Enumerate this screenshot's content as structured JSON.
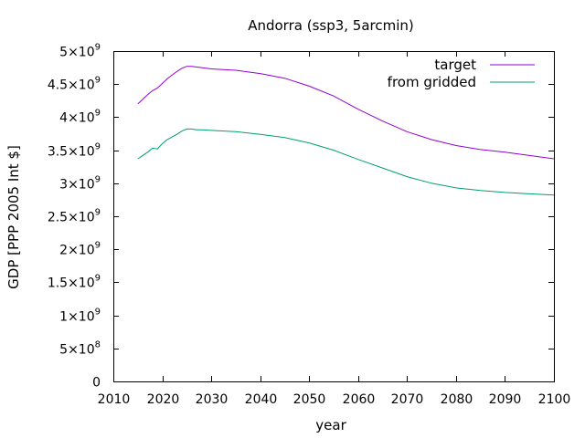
{
  "chart_data": {
    "type": "line",
    "title": "Andorra (ssp3, 5arcmin)",
    "xlabel": "year",
    "ylabel": "GDP [PPP 2005 Int $]",
    "xlim": [
      2010,
      2100
    ],
    "ylim": [
      0,
      5000000000
    ],
    "grid": false,
    "legend_position": "top-right",
    "x_ticks": [
      {
        "value": 2010,
        "label": "2010"
      },
      {
        "value": 2020,
        "label": "2020"
      },
      {
        "value": 2030,
        "label": "2030"
      },
      {
        "value": 2040,
        "label": "2040"
      },
      {
        "value": 2050,
        "label": "2050"
      },
      {
        "value": 2060,
        "label": "2060"
      },
      {
        "value": 2070,
        "label": "2070"
      },
      {
        "value": 2080,
        "label": "2080"
      },
      {
        "value": 2090,
        "label": "2090"
      },
      {
        "value": 2100,
        "label": "2100"
      }
    ],
    "y_ticks": [
      {
        "value": 0,
        "mant": "0",
        "exp": ""
      },
      {
        "value": 500000000,
        "mant": "5×10",
        "exp": "8"
      },
      {
        "value": 1000000000,
        "mant": "1×10",
        "exp": "9"
      },
      {
        "value": 1500000000,
        "mant": "1.5×10",
        "exp": "9"
      },
      {
        "value": 2000000000,
        "mant": "2×10",
        "exp": "9"
      },
      {
        "value": 2500000000,
        "mant": "2.5×10",
        "exp": "9"
      },
      {
        "value": 3000000000,
        "mant": "3×10",
        "exp": "9"
      },
      {
        "value": 3500000000,
        "mant": "3.5×10",
        "exp": "9"
      },
      {
        "value": 4000000000,
        "mant": "4×10",
        "exp": "9"
      },
      {
        "value": 4500000000,
        "mant": "4.5×10",
        "exp": "9"
      },
      {
        "value": 5000000000,
        "mant": "5×10",
        "exp": "9"
      }
    ],
    "series": [
      {
        "name": "target",
        "color": "#9400d3",
        "x": [
          2015,
          2016,
          2017,
          2018,
          2019,
          2020,
          2021,
          2022,
          2023,
          2024,
          2025,
          2026,
          2027,
          2028,
          2030,
          2035,
          2040,
          2045,
          2050,
          2055,
          2060,
          2065,
          2070,
          2075,
          2080,
          2085,
          2090,
          2095,
          2100
        ],
        "y": [
          4200000000,
          4270000000,
          4340000000,
          4400000000,
          4440000000,
          4510000000,
          4580000000,
          4640000000,
          4690000000,
          4740000000,
          4770000000,
          4770000000,
          4760000000,
          4750000000,
          4730000000,
          4710000000,
          4660000000,
          4590000000,
          4470000000,
          4320000000,
          4120000000,
          3940000000,
          3780000000,
          3660000000,
          3570000000,
          3510000000,
          3470000000,
          3420000000,
          3370000000
        ]
      },
      {
        "name": "from gridded",
        "color": "#009e73",
        "x": [
          2015,
          2016,
          2017,
          2018,
          2019,
          2020,
          2021,
          2022,
          2023,
          2024,
          2025,
          2026,
          2027,
          2028,
          2030,
          2035,
          2040,
          2045,
          2050,
          2055,
          2060,
          2065,
          2070,
          2075,
          2080,
          2085,
          2090,
          2095,
          2100
        ],
        "y": [
          3370000000,
          3420000000,
          3470000000,
          3530000000,
          3520000000,
          3600000000,
          3660000000,
          3700000000,
          3740000000,
          3790000000,
          3820000000,
          3820000000,
          3810000000,
          3810000000,
          3800000000,
          3780000000,
          3740000000,
          3690000000,
          3610000000,
          3500000000,
          3360000000,
          3230000000,
          3100000000,
          3000000000,
          2930000000,
          2890000000,
          2860000000,
          2840000000,
          2820000000
        ]
      }
    ]
  }
}
